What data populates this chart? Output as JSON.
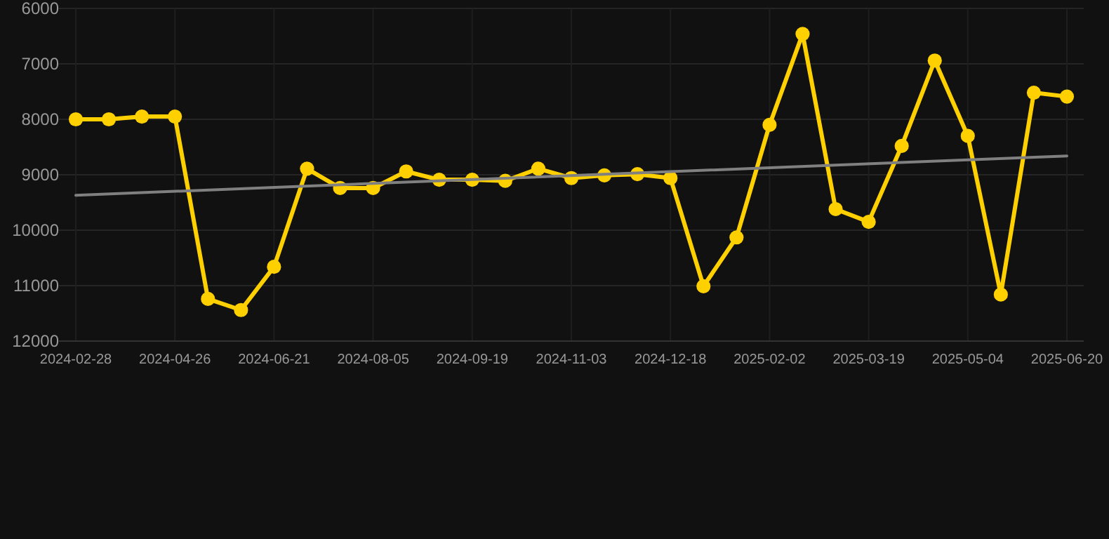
{
  "chart_data": {
    "type": "line",
    "categories": [
      "2024-02-28",
      null,
      null,
      "2024-04-26",
      null,
      null,
      "2024-06-21",
      null,
      null,
      "2024-08-05",
      null,
      null,
      "2024-09-19",
      null,
      null,
      "2024-11-03",
      null,
      null,
      "2024-12-18",
      null,
      null,
      "2025-02-02",
      null,
      null,
      "2025-03-19",
      null,
      null,
      "2025-05-04",
      null,
      null,
      "2025-06-20"
    ],
    "series": [
      {
        "color": "#ffd000",
        "marker": "circle",
        "values": [
          8000,
          8000,
          7950,
          7950,
          11240,
          11440,
          10660,
          8890,
          9240,
          9240,
          8940,
          9090,
          9090,
          9110,
          8890,
          9060,
          9010,
          8990,
          9060,
          11010,
          10130,
          8100,
          6460,
          9620,
          9850,
          8480,
          6940,
          8300,
          11160,
          7520,
          7590
        ]
      },
      {
        "color": "#808080",
        "marker": "none",
        "values": [
          9370,
          null,
          null,
          null,
          null,
          null,
          null,
          null,
          null,
          null,
          null,
          null,
          null,
          null,
          null,
          null,
          null,
          null,
          null,
          null,
          null,
          null,
          null,
          null,
          null,
          null,
          null,
          null,
          null,
          null,
          8660
        ]
      }
    ],
    "ylim": [
      12000,
      6000
    ],
    "yticks": [
      6000,
      7000,
      8000,
      9000,
      10000,
      11000,
      12000
    ],
    "grid": true,
    "line_style": "solid"
  }
}
